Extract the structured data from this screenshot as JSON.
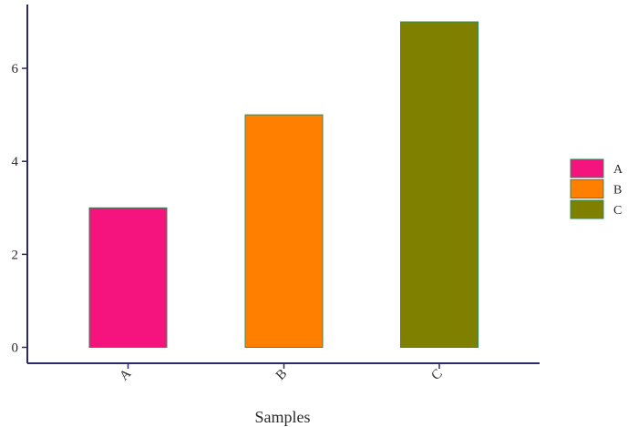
{
  "chart_data": {
    "type": "bar",
    "categories": [
      "A",
      "B",
      "C"
    ],
    "values": [
      3,
      5,
      7
    ],
    "colors": [
      "#f5137d",
      "#ff8000",
      "#808000"
    ],
    "bar_outline_color": "#2e8b57",
    "axis_color": "#2b2b6b",
    "title": "",
    "xlabel": "Samples",
    "ylabel": "",
    "ylim": [
      0,
      7.35
    ],
    "yticks": [
      0,
      2,
      4,
      6
    ],
    "grid": false,
    "legend": {
      "position": "right",
      "entries": [
        "A",
        "B",
        "C"
      ]
    }
  }
}
